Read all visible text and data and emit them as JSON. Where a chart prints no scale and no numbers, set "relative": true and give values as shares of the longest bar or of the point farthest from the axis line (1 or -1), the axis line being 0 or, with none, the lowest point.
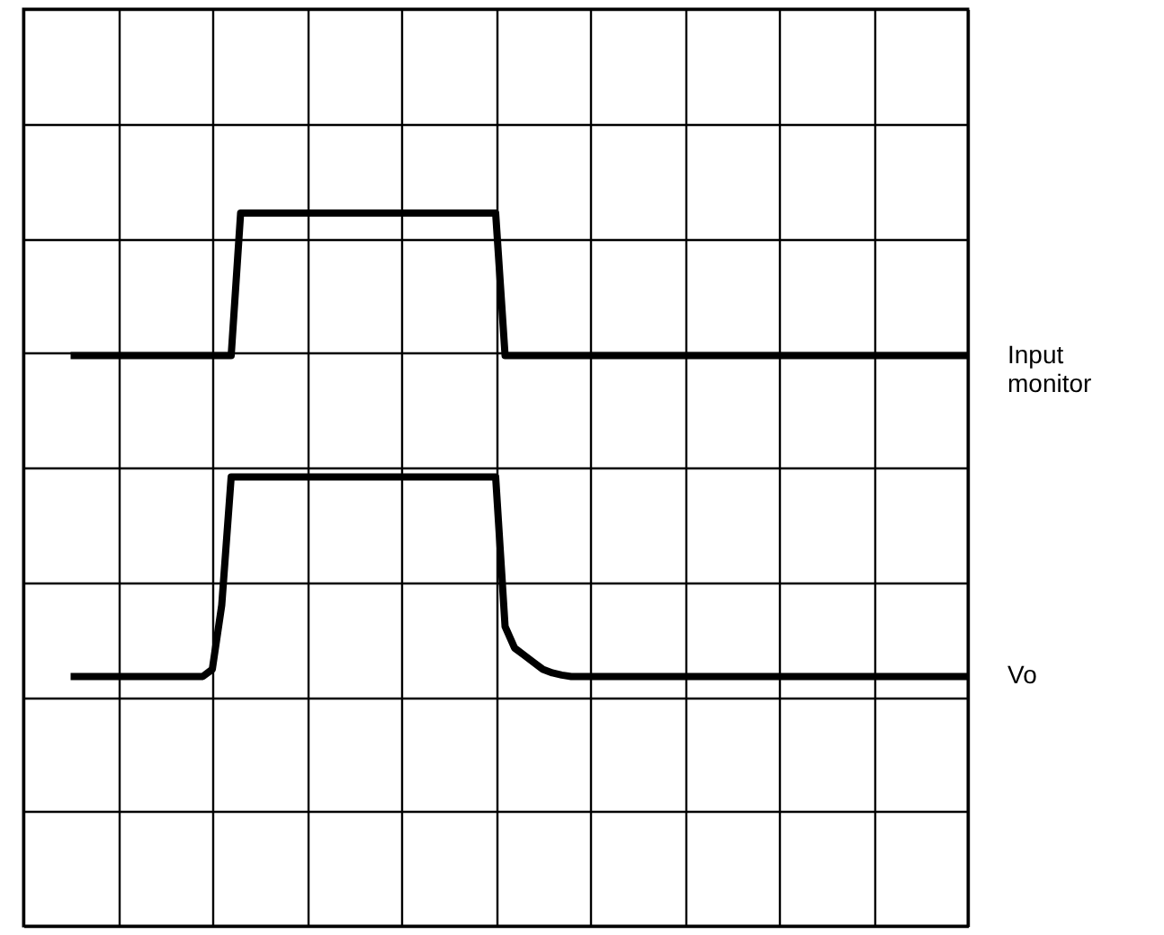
{
  "chart_data": {
    "type": "line",
    "relative": true,
    "categories": [
      null,
      null,
      null,
      null,
      null,
      null,
      null,
      null,
      null,
      null,
      null,
      null,
      null,
      null,
      null,
      null,
      null,
      null,
      null,
      null,
      null,
      null,
      null,
      null,
      null,
      null,
      null,
      null,
      null,
      null,
      null,
      null,
      null,
      null,
      null,
      null,
      null,
      null,
      null,
      null,
      null,
      null,
      null,
      null,
      null,
      null,
      null,
      null,
      null,
      null,
      null,
      null,
      null,
      null,
      null,
      null,
      null,
      null,
      null,
      null,
      null,
      null,
      null,
      null,
      null,
      null,
      null,
      null,
      null,
      null,
      null,
      null,
      null,
      null,
      null,
      null,
      null,
      null,
      null,
      null,
      null,
      null,
      null,
      null,
      null,
      null,
      null,
      null,
      null,
      null,
      null,
      null,
      null,
      null,
      null,
      null
    ],
    "grid": true,
    "line_style": "solid",
    "series": [
      {
        "name": "Input monitor",
        "color": "#000000",
        "values": [
          0.8,
          0.8,
          0.8,
          0.8,
          0.8,
          0.8,
          0.8,
          0.8,
          0.8,
          0.8,
          0.8,
          0.8,
          0.8,
          0.8,
          0.8,
          0.8,
          0.8,
          0.8,
          1,
          1,
          1,
          1,
          1,
          1,
          1,
          1,
          1,
          1,
          1,
          1,
          1,
          1,
          1,
          1,
          1,
          1,
          1,
          1,
          1,
          1,
          1,
          1,
          1,
          1,
          1,
          1,
          0.8,
          0.8,
          0.8,
          0.8,
          0.8,
          0.8,
          0.8,
          0.8,
          0.8,
          0.8,
          0.8,
          0.8,
          0.8,
          0.8,
          0.8,
          0.8,
          0.8,
          0.8,
          0.8,
          0.8,
          0.8,
          0.8,
          0.8,
          0.8,
          0.8,
          0.8,
          0.8,
          0.8,
          0.8,
          0.8,
          0.8,
          0.8,
          0.8,
          0.8,
          0.8,
          0.8,
          0.8,
          0.8,
          0.8,
          0.8,
          0.8,
          0.8,
          0.8,
          0.8,
          0.8,
          0.8,
          0.8,
          0.8,
          0.8,
          0.8
        ]
      },
      {
        "name": "Vo",
        "color": "#000000",
        "values": [
          0.35,
          0.35,
          0.35,
          0.35,
          0.35,
          0.35,
          0.35,
          0.35,
          0.35,
          0.35,
          0.35,
          0.35,
          0.35,
          0.35,
          0.35,
          0.36,
          0.45,
          0.63,
          0.63,
          0.63,
          0.63,
          0.63,
          0.63,
          0.63,
          0.63,
          0.63,
          0.63,
          0.63,
          0.63,
          0.63,
          0.63,
          0.63,
          0.63,
          0.63,
          0.63,
          0.63,
          0.63,
          0.63,
          0.63,
          0.63,
          0.63,
          0.63,
          0.63,
          0.63,
          0.63,
          0.63,
          0.42,
          0.39,
          0.38,
          0.37,
          0.36,
          0.355,
          0.352,
          0.35,
          0.35,
          0.35,
          0.35,
          0.35,
          0.35,
          0.35,
          0.35,
          0.35,
          0.35,
          0.35,
          0.35,
          0.35,
          0.35,
          0.35,
          0.35,
          0.35,
          0.35,
          0.35,
          0.35,
          0.35,
          0.35,
          0.35,
          0.35,
          0.35,
          0.35,
          0.35,
          0.35,
          0.35,
          0.35,
          0.35,
          0.35,
          0.35,
          0.35,
          0.35,
          0.35,
          0.35,
          0.35,
          0.35,
          0.35,
          0.35,
          0.35,
          0.35
        ]
      }
    ]
  }
}
